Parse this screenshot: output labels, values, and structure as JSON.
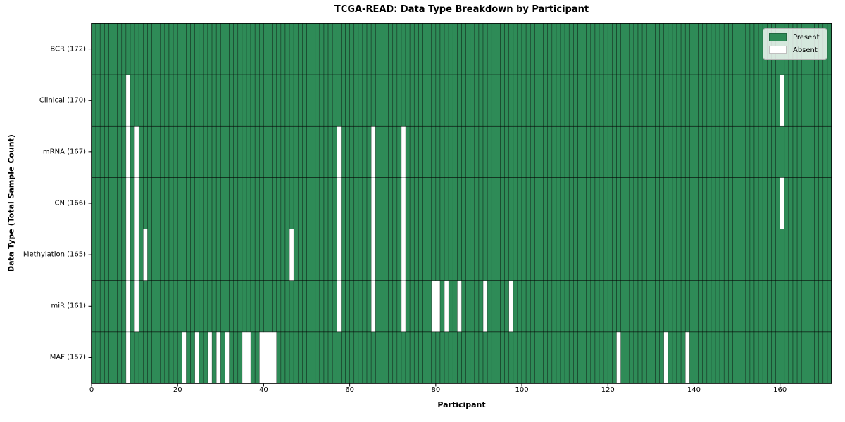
{
  "chart_data": {
    "type": "heatmap",
    "title": "TCGA-READ: Data Type Breakdown by Participant",
    "xlabel": "Participant",
    "ylabel": "Data Type (Total Sample Count)",
    "n_participants": 172,
    "x_ticks": [
      0,
      20,
      40,
      60,
      80,
      100,
      120,
      140,
      160
    ],
    "grid": true,
    "legend_position": "upper right",
    "rows": [
      {
        "label": "BCR (172)",
        "total": 172,
        "absent": []
      },
      {
        "label": "Clinical (170)",
        "total": 170,
        "absent": [
          8,
          160
        ]
      },
      {
        "label": "mRNA (167)",
        "total": 167,
        "absent": [
          8,
          10,
          57,
          65,
          72
        ]
      },
      {
        "label": "CN (166)",
        "total": 166,
        "absent": [
          8,
          10,
          57,
          65,
          72,
          160
        ]
      },
      {
        "label": "Methylation (165)",
        "total": 165,
        "absent": [
          8,
          10,
          12,
          46,
          57,
          65,
          72
        ]
      },
      {
        "label": "miR (161)",
        "total": 161,
        "absent": [
          8,
          10,
          57,
          65,
          72,
          79,
          80,
          82,
          85,
          91,
          97
        ]
      },
      {
        "label": "MAF (157)",
        "total": 157,
        "absent": [
          8,
          21,
          24,
          27,
          29,
          31,
          35,
          36,
          39,
          40,
          41,
          42,
          122,
          133,
          138
        ]
      }
    ],
    "legend": [
      {
        "label": "Present",
        "color": "#2e8b57"
      },
      {
        "label": "Absent",
        "color": "#ffffff"
      }
    ],
    "colors": {
      "present": "#2e8b57",
      "absent": "#ffffff",
      "cell_edge": "rgba(0,0,0,0.55)",
      "row_line": "rgba(0,0,0,0.4)",
      "border": "#000000"
    }
  }
}
